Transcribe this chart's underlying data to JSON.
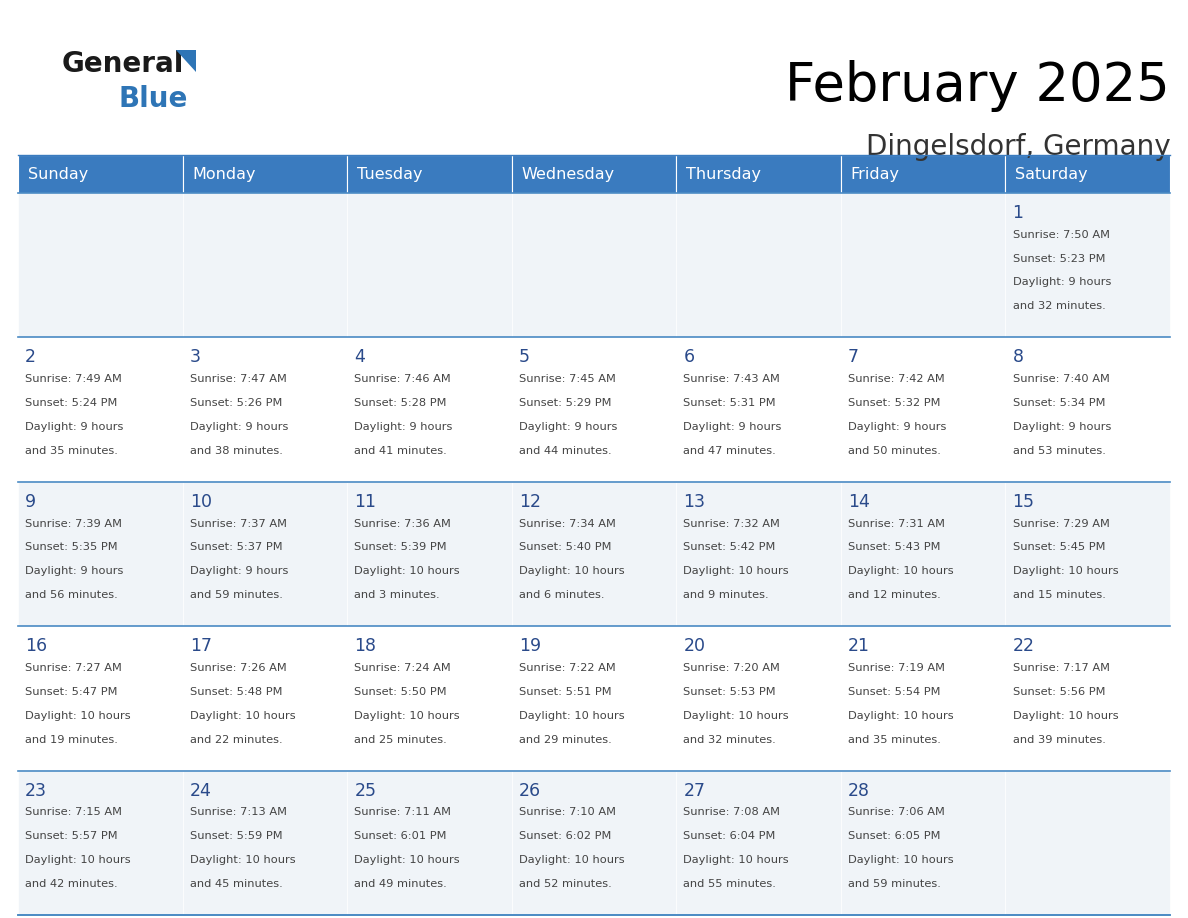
{
  "title": "February 2025",
  "subtitle": "Dingelsdorf, Germany",
  "header_bg": "#3a7bbf",
  "header_text": "#ffffff",
  "weekdays": [
    "Sunday",
    "Monday",
    "Tuesday",
    "Wednesday",
    "Thursday",
    "Friday",
    "Saturday"
  ],
  "cell_bg_odd": "#f0f4f8",
  "cell_bg_even": "#ffffff",
  "cell_border_color": "#3a7bbf",
  "row_line_color": "#4a8ac4",
  "day_number_color": "#2a4a8a",
  "text_color": "#444444",
  "days": [
    {
      "date": 1,
      "col": 6,
      "row": 0,
      "sunrise": "7:50 AM",
      "sunset": "5:23 PM",
      "daylight": "9 hours\nand 32 minutes."
    },
    {
      "date": 2,
      "col": 0,
      "row": 1,
      "sunrise": "7:49 AM",
      "sunset": "5:24 PM",
      "daylight": "9 hours\nand 35 minutes."
    },
    {
      "date": 3,
      "col": 1,
      "row": 1,
      "sunrise": "7:47 AM",
      "sunset": "5:26 PM",
      "daylight": "9 hours\nand 38 minutes."
    },
    {
      "date": 4,
      "col": 2,
      "row": 1,
      "sunrise": "7:46 AM",
      "sunset": "5:28 PM",
      "daylight": "9 hours\nand 41 minutes."
    },
    {
      "date": 5,
      "col": 3,
      "row": 1,
      "sunrise": "7:45 AM",
      "sunset": "5:29 PM",
      "daylight": "9 hours\nand 44 minutes."
    },
    {
      "date": 6,
      "col": 4,
      "row": 1,
      "sunrise": "7:43 AM",
      "sunset": "5:31 PM",
      "daylight": "9 hours\nand 47 minutes."
    },
    {
      "date": 7,
      "col": 5,
      "row": 1,
      "sunrise": "7:42 AM",
      "sunset": "5:32 PM",
      "daylight": "9 hours\nand 50 minutes."
    },
    {
      "date": 8,
      "col": 6,
      "row": 1,
      "sunrise": "7:40 AM",
      "sunset": "5:34 PM",
      "daylight": "9 hours\nand 53 minutes."
    },
    {
      "date": 9,
      "col": 0,
      "row": 2,
      "sunrise": "7:39 AM",
      "sunset": "5:35 PM",
      "daylight": "9 hours\nand 56 minutes."
    },
    {
      "date": 10,
      "col": 1,
      "row": 2,
      "sunrise": "7:37 AM",
      "sunset": "5:37 PM",
      "daylight": "9 hours\nand 59 minutes."
    },
    {
      "date": 11,
      "col": 2,
      "row": 2,
      "sunrise": "7:36 AM",
      "sunset": "5:39 PM",
      "daylight": "10 hours\nand 3 minutes."
    },
    {
      "date": 12,
      "col": 3,
      "row": 2,
      "sunrise": "7:34 AM",
      "sunset": "5:40 PM",
      "daylight": "10 hours\nand 6 minutes."
    },
    {
      "date": 13,
      "col": 4,
      "row": 2,
      "sunrise": "7:32 AM",
      "sunset": "5:42 PM",
      "daylight": "10 hours\nand 9 minutes."
    },
    {
      "date": 14,
      "col": 5,
      "row": 2,
      "sunrise": "7:31 AM",
      "sunset": "5:43 PM",
      "daylight": "10 hours\nand 12 minutes."
    },
    {
      "date": 15,
      "col": 6,
      "row": 2,
      "sunrise": "7:29 AM",
      "sunset": "5:45 PM",
      "daylight": "10 hours\nand 15 minutes."
    },
    {
      "date": 16,
      "col": 0,
      "row": 3,
      "sunrise": "7:27 AM",
      "sunset": "5:47 PM",
      "daylight": "10 hours\nand 19 minutes."
    },
    {
      "date": 17,
      "col": 1,
      "row": 3,
      "sunrise": "7:26 AM",
      "sunset": "5:48 PM",
      "daylight": "10 hours\nand 22 minutes."
    },
    {
      "date": 18,
      "col": 2,
      "row": 3,
      "sunrise": "7:24 AM",
      "sunset": "5:50 PM",
      "daylight": "10 hours\nand 25 minutes."
    },
    {
      "date": 19,
      "col": 3,
      "row": 3,
      "sunrise": "7:22 AM",
      "sunset": "5:51 PM",
      "daylight": "10 hours\nand 29 minutes."
    },
    {
      "date": 20,
      "col": 4,
      "row": 3,
      "sunrise": "7:20 AM",
      "sunset": "5:53 PM",
      "daylight": "10 hours\nand 32 minutes."
    },
    {
      "date": 21,
      "col": 5,
      "row": 3,
      "sunrise": "7:19 AM",
      "sunset": "5:54 PM",
      "daylight": "10 hours\nand 35 minutes."
    },
    {
      "date": 22,
      "col": 6,
      "row": 3,
      "sunrise": "7:17 AM",
      "sunset": "5:56 PM",
      "daylight": "10 hours\nand 39 minutes."
    },
    {
      "date": 23,
      "col": 0,
      "row": 4,
      "sunrise": "7:15 AM",
      "sunset": "5:57 PM",
      "daylight": "10 hours\nand 42 minutes."
    },
    {
      "date": 24,
      "col": 1,
      "row": 4,
      "sunrise": "7:13 AM",
      "sunset": "5:59 PM",
      "daylight": "10 hours\nand 45 minutes."
    },
    {
      "date": 25,
      "col": 2,
      "row": 4,
      "sunrise": "7:11 AM",
      "sunset": "6:01 PM",
      "daylight": "10 hours\nand 49 minutes."
    },
    {
      "date": 26,
      "col": 3,
      "row": 4,
      "sunrise": "7:10 AM",
      "sunset": "6:02 PM",
      "daylight": "10 hours\nand 52 minutes."
    },
    {
      "date": 27,
      "col": 4,
      "row": 4,
      "sunrise": "7:08 AM",
      "sunset": "6:04 PM",
      "daylight": "10 hours\nand 55 minutes."
    },
    {
      "date": 28,
      "col": 5,
      "row": 4,
      "sunrise": "7:06 AM",
      "sunset": "6:05 PM",
      "daylight": "10 hours\nand 59 minutes."
    }
  ]
}
